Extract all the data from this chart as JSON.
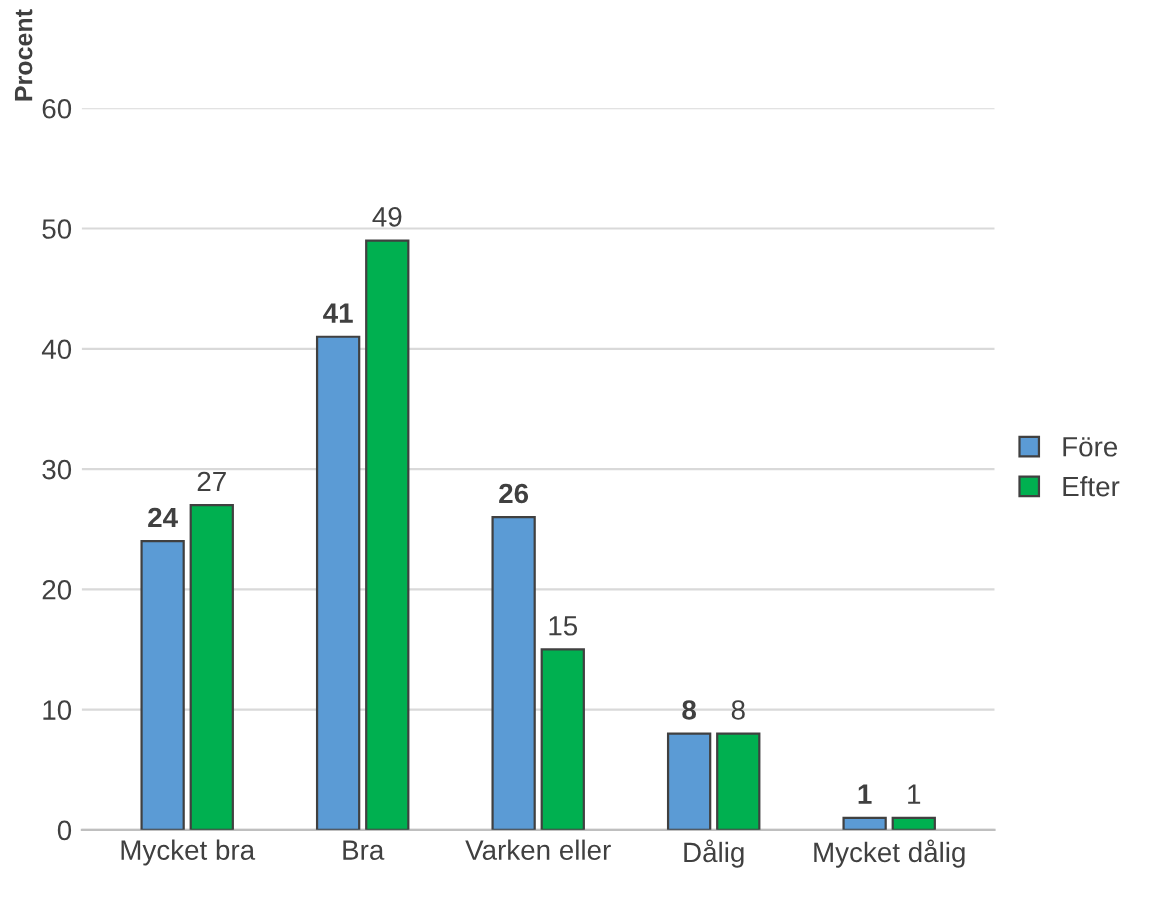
{
  "chart_data": {
    "type": "bar",
    "ylabel": "Procent",
    "categories": [
      "Mycket bra",
      "Bra",
      "Varken eller",
      "Dålig",
      "Mycket dålig"
    ],
    "series": [
      {
        "name": "Före",
        "color": "#5b9bd5",
        "values": [
          24,
          41,
          26,
          8,
          1
        ]
      },
      {
        "name": "Efter",
        "color": "#00b050",
        "values": [
          27,
          49,
          15,
          8,
          1
        ]
      }
    ],
    "ylim": [
      0,
      60
    ],
    "yticks": [
      0,
      10,
      20,
      30,
      40,
      50,
      60
    ],
    "grid": "y",
    "legend": "right",
    "data_labels": true
  }
}
